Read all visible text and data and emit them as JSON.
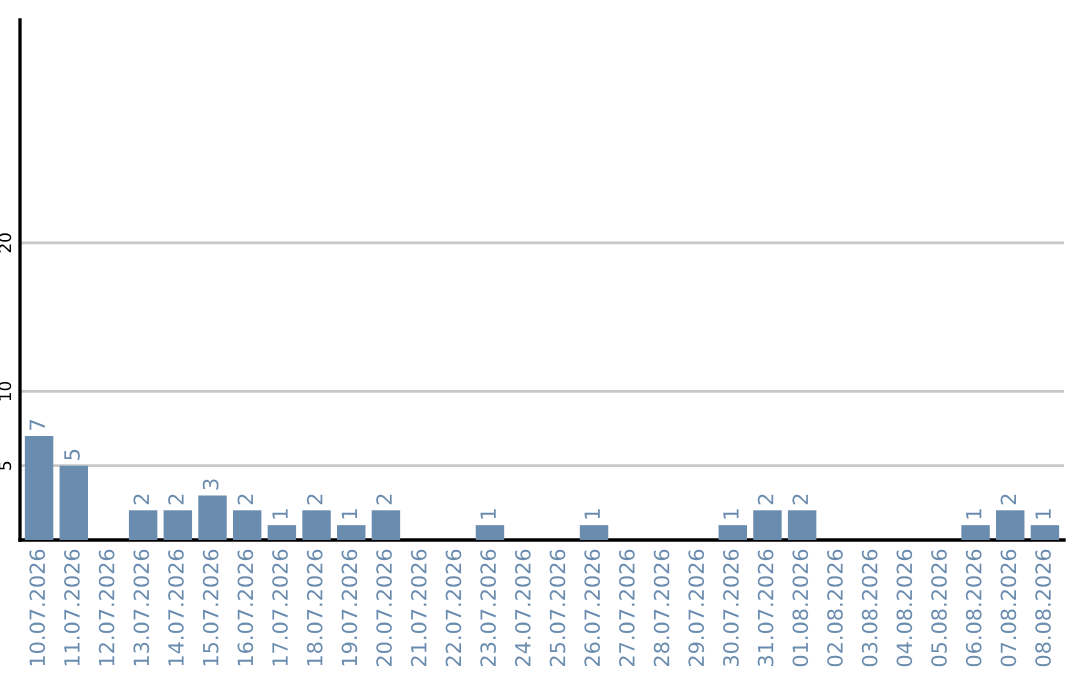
{
  "chart_data": {
    "type": "bar",
    "categories": [
      "10.07.2026",
      "11.07.2026",
      "12.07.2026",
      "13.07.2026",
      "14.07.2026",
      "15.07.2026",
      "16.07.2026",
      "17.07.2026",
      "18.07.2026",
      "19.07.2026",
      "20.07.2026",
      "21.07.2026",
      "22.07.2026",
      "23.07.2026",
      "24.07.2026",
      "25.07.2026",
      "26.07.2026",
      "27.07.2026",
      "28.07.2026",
      "29.07.2026",
      "30.07.2026",
      "31.07.2026",
      "01.08.2026",
      "02.08.2026",
      "03.08.2026",
      "04.08.2026",
      "05.08.2026",
      "06.08.2026",
      "07.08.2026",
      "08.08.2026"
    ],
    "values": [
      7,
      5,
      0,
      2,
      2,
      3,
      2,
      1,
      2,
      1,
      2,
      0,
      0,
      1,
      0,
      0,
      1,
      0,
      0,
      0,
      1,
      2,
      2,
      0,
      0,
      0,
      0,
      1,
      2,
      1
    ],
    "value_labels": [
      "7",
      "5",
      null,
      "2",
      "2",
      "3",
      "2",
      "1",
      "2",
      "1",
      "2",
      null,
      null,
      "1",
      null,
      null,
      "1",
      null,
      null,
      null,
      "1",
      "2",
      "2",
      null,
      null,
      null,
      null,
      "1",
      "2",
      "1"
    ],
    "color": "#6a8caf",
    "ylim": [
      0,
      35
    ],
    "yticks": [
      5,
      10,
      20
    ],
    "grid": "y",
    "legend": false
  }
}
